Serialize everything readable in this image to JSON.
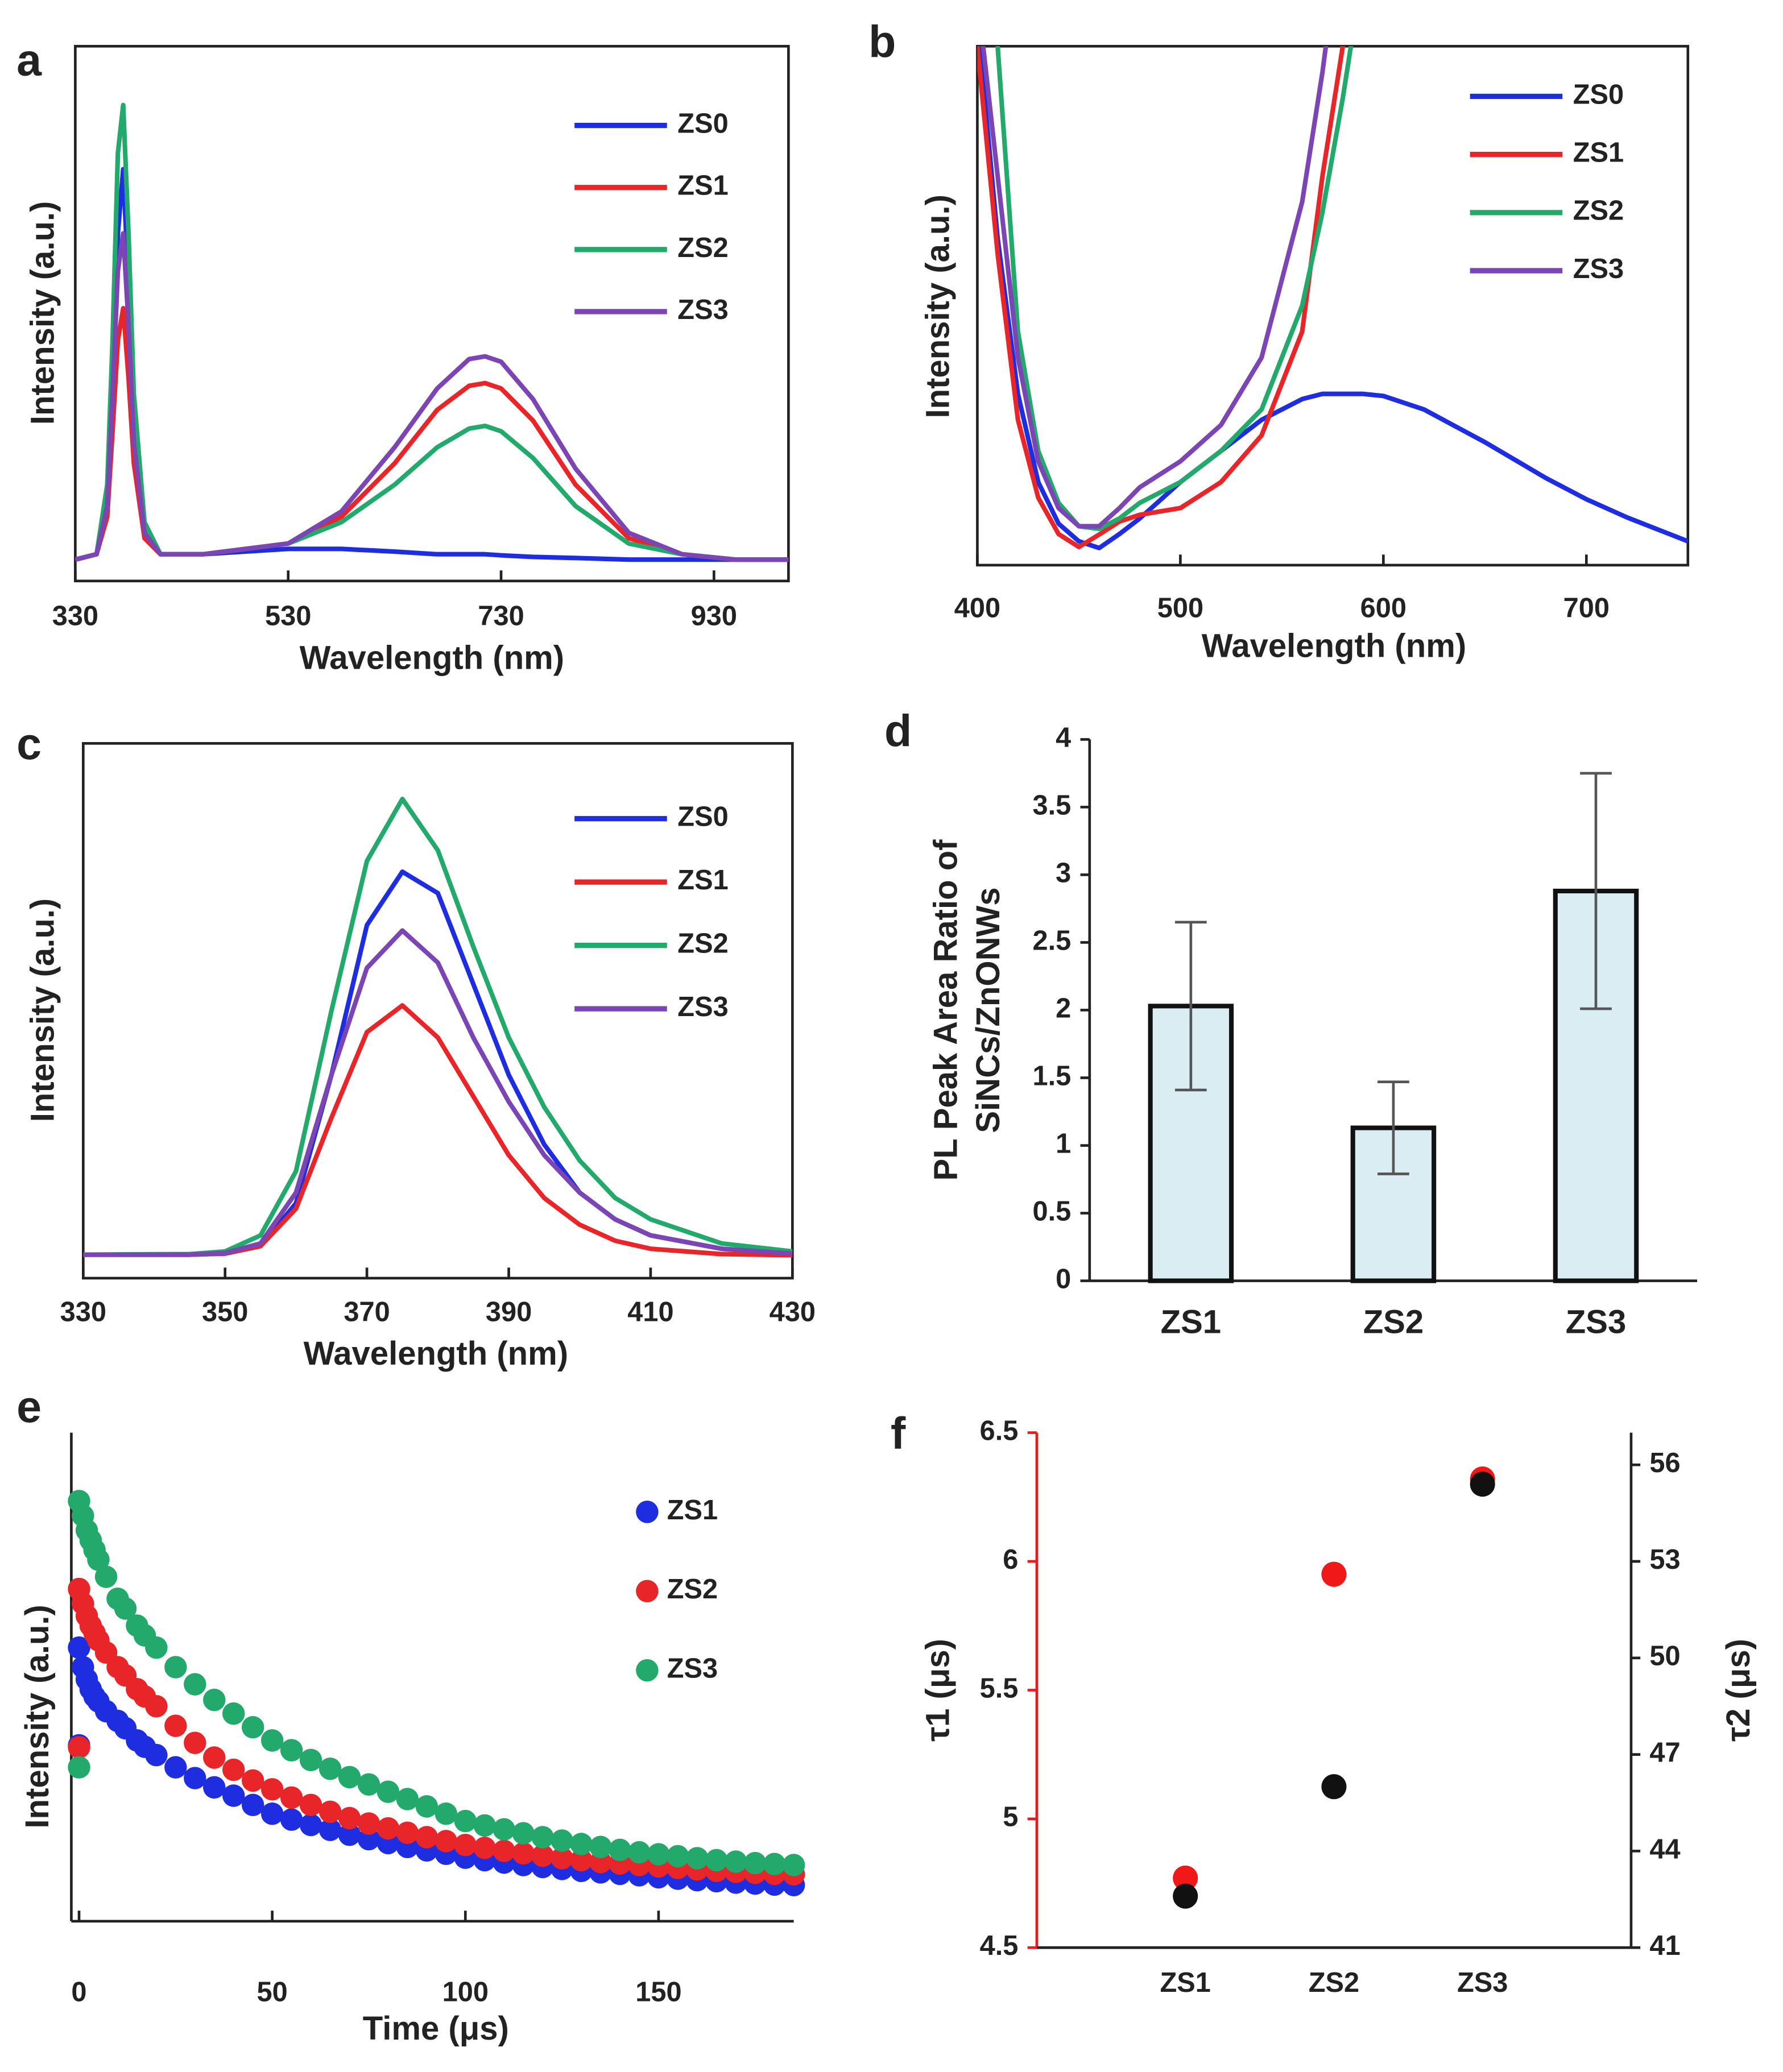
{
  "chart_data": [
    {
      "panel": "a",
      "type": "line",
      "xlabel": "Wavelength (nm)",
      "ylabel": "Intensity (a.u.)",
      "xlim": [
        330,
        1000
      ],
      "xticks": [
        330,
        530,
        730,
        930
      ],
      "ylim": [
        0,
        100
      ],
      "legend": true,
      "x": [
        330,
        350,
        360,
        365,
        370,
        375,
        380,
        385,
        395,
        410,
        450,
        530,
        580,
        630,
        670,
        700,
        715,
        730,
        760,
        800,
        850,
        900,
        950,
        1000
      ],
      "series": [
        {
          "name": "ZS0",
          "color": "#1f2de0",
          "values": [
            4,
            5,
            15,
            35,
            65,
            77,
            55,
            30,
            10,
            5,
            5,
            6,
            6,
            5.5,
            5,
            5,
            5,
            4.8,
            4.5,
            4.3,
            4,
            4,
            4,
            4
          ]
        },
        {
          "name": "ZS1",
          "color": "#e8262a",
          "values": [
            4,
            5,
            12,
            28,
            45,
            51,
            38,
            22,
            8,
            5,
            5,
            7,
            12,
            22,
            32,
            36.5,
            37,
            36,
            30,
            18,
            8,
            5,
            4,
            4
          ]
        },
        {
          "name": "ZS2",
          "color": "#22a96b",
          "values": [
            4,
            5,
            18,
            45,
            80,
            89,
            65,
            35,
            11,
            5,
            5,
            7,
            11,
            18,
            25,
            28.5,
            29,
            28,
            23,
            14,
            7,
            5,
            4,
            4
          ]
        },
        {
          "name": "ZS3",
          "color": "#7b45b3",
          "values": [
            4,
            5,
            14,
            35,
            58,
            65,
            48,
            26,
            9,
            5,
            5,
            7,
            13,
            25,
            36,
            41.5,
            42,
            41,
            34,
            21,
            9,
            5,
            4,
            4
          ]
        }
      ]
    },
    {
      "panel": "b",
      "type": "line",
      "xlabel": "Wavelength (nm)",
      "ylabel": "Intensity (a.u.)",
      "xlim": [
        400,
        750
      ],
      "xticks": [
        400,
        500,
        600,
        700
      ],
      "ylim": [
        0,
        100
      ],
      "legend": true,
      "x": [
        400,
        410,
        420,
        430,
        440,
        450,
        460,
        470,
        480,
        500,
        520,
        540,
        560,
        570,
        580,
        590,
        600,
        620,
        650,
        680,
        700,
        720,
        750
      ],
      "series": [
        {
          "name": "ZS0",
          "color": "#1f2de0",
          "values": [
            105,
            63,
            33,
            16,
            8,
            4.6,
            3.3,
            6,
            9,
            16,
            22,
            28,
            32,
            33,
            33,
            33,
            32.6,
            30,
            23.7,
            16.8,
            12.7,
            9.2,
            4.6
          ]
        },
        {
          "name": "ZS1",
          "color": "#e8262a",
          "values": [
            100,
            60,
            28,
            13,
            6,
            3.5,
            5.9,
            8.4,
            9.7,
            11,
            16,
            25,
            45,
            75,
            100,
            130,
            null,
            null,
            null,
            null,
            null,
            null,
            null
          ]
        },
        {
          "name": "ZS2",
          "color": "#22a96b",
          "values": [
            120,
            100,
            45,
            22,
            12,
            7.5,
            7,
            9,
            12,
            16,
            22,
            30,
            50,
            68,
            90,
            115,
            null,
            null,
            null,
            null,
            null,
            null,
            null
          ]
        },
        {
          "name": "ZS3",
          "color": "#7b45b3",
          "values": [
            110,
            75,
            40,
            20,
            11,
            7.5,
            7.5,
            11,
            15,
            20,
            27,
            40,
            70,
            95,
            125,
            null,
            null,
            null,
            null,
            null,
            null,
            null,
            null
          ]
        }
      ]
    },
    {
      "panel": "c",
      "type": "line",
      "xlabel": "Wavelength (nm)",
      "ylabel": "Intensity (a.u.)",
      "xlim": [
        330,
        430
      ],
      "xticks": [
        330,
        350,
        370,
        390,
        410,
        430
      ],
      "ylim": [
        0,
        100
      ],
      "legend": true,
      "x": [
        330,
        345,
        350,
        355,
        360,
        365,
        370,
        375,
        380,
        385,
        390,
        395,
        400,
        405,
        410,
        420,
        430
      ],
      "series": [
        {
          "name": "ZS0",
          "color": "#1f2de0",
          "values": [
            4.4,
            4.4,
            4.6,
            6,
            14,
            38,
            66,
            76,
            72,
            55,
            38,
            25,
            16,
            11,
            8,
            5.5,
            4.6
          ]
        },
        {
          "name": "ZS1",
          "color": "#e8262a",
          "values": [
            4.4,
            4.4,
            4.6,
            6,
            13,
            30,
            46,
            51,
            45,
            34,
            23,
            15,
            10,
            7,
            5.5,
            4.5,
            4.3
          ]
        },
        {
          "name": "ZS2",
          "color": "#22a96b",
          "values": [
            4.4,
            4.5,
            5,
            8,
            20,
            50,
            78,
            89.6,
            80,
            62,
            45,
            32,
            22,
            15,
            11,
            6.5,
            5
          ]
        },
        {
          "name": "ZS3",
          "color": "#7b45b3",
          "values": [
            4.4,
            4.4,
            4.7,
            6.5,
            16,
            38,
            58,
            65,
            59,
            45,
            33,
            23,
            16,
            11,
            8,
            5.5,
            4.6
          ]
        }
      ]
    },
    {
      "panel": "d",
      "type": "bar",
      "ylabel": [
        "PL Peak Area  Ratio of",
        "SiNCs/ZnONWs"
      ],
      "categories": [
        "ZS1",
        "ZS2",
        "ZS3"
      ],
      "values": [
        2.03,
        1.13,
        2.88
      ],
      "errors": [
        0.62,
        0.34,
        0.87
      ],
      "color": "#daedf2",
      "ylim": [
        0,
        4
      ],
      "yticks": [
        0,
        0.5,
        1,
        1.5,
        2,
        2.5,
        3,
        3.5,
        4
      ]
    },
    {
      "panel": "e",
      "type": "scatter",
      "xlabel": "Time  (μs)",
      "ylabel": "Intensity (a.u.)",
      "xlim": [
        -2,
        185
      ],
      "xticks": [
        0,
        50,
        100,
        150
      ],
      "ylim": [
        0,
        100
      ],
      "legend": true,
      "x": [
        0,
        0,
        1,
        2,
        3,
        4,
        5,
        7,
        10,
        12,
        15,
        17,
        20,
        25,
        30,
        35,
        40,
        45,
        50,
        55,
        60,
        65,
        70,
        75,
        80,
        85,
        90,
        95,
        100,
        105,
        110,
        115,
        120,
        125,
        130,
        135,
        140,
        145,
        150,
        155,
        160,
        165,
        170,
        175,
        180,
        185
      ],
      "series": [
        {
          "name": "ZS1",
          "color": "#1f2de0",
          "values": [
            36,
            56,
            52,
            49.5,
            47.5,
            46,
            45,
            43,
            41,
            39.5,
            37,
            35.7,
            34,
            31.5,
            29.3,
            27.4,
            25.7,
            23.8,
            22,
            20.8,
            19.7,
            18.7,
            17.7,
            16.8,
            16,
            15.2,
            14.5,
            13.8,
            13,
            12.5,
            12,
            11.5,
            11.1,
            10.7,
            10.3,
            10,
            9.7,
            9.4,
            9,
            8.7,
            8.4,
            8.2,
            7.9,
            7.7,
            7.5,
            7.4
          ]
        },
        {
          "name": "ZS2",
          "color": "#e8262a",
          "values": [
            35.6,
            68,
            65,
            62.5,
            60.5,
            59,
            57.5,
            55,
            52,
            50.3,
            47.5,
            46,
            44,
            40,
            36.5,
            33.5,
            31,
            28.8,
            27,
            25.3,
            23.8,
            22.4,
            21.1,
            20,
            19,
            18.1,
            17.2,
            16.4,
            15.6,
            15,
            14.4,
            13.9,
            13.4,
            12.9,
            12.5,
            12.1,
            11.8,
            11.5,
            11.2,
            10.9,
            10.6,
            10.3,
            10.1,
            9.9,
            9.7,
            9.6
          ]
        },
        {
          "name": "ZS3",
          "color": "#22a96b",
          "values": [
            31.5,
            86,
            83,
            80,
            78,
            76,
            74,
            70.5,
            66,
            64,
            60.5,
            58.5,
            56,
            52,
            48.5,
            45.3,
            42.5,
            39.7,
            37,
            35,
            33,
            31.2,
            29.5,
            28,
            26.5,
            25,
            23.5,
            22,
            20.5,
            19.6,
            18.8,
            18,
            17.2,
            16.5,
            15.8,
            15.2,
            14.6,
            14.1,
            13.7,
            13.3,
            12.9,
            12.5,
            12.2,
            11.9,
            11.7,
            11.5
          ]
        }
      ]
    },
    {
      "panel": "f",
      "type": "scatter",
      "ylabel": "τ1 (μs)",
      "y2label": "τ2 (μs)",
      "categories": [
        "ZS1",
        "ZS2",
        "ZS3"
      ],
      "ylim": [
        4.5,
        6.5
      ],
      "yticks": [
        4.5,
        5,
        5.5,
        6,
        6.5
      ],
      "y2lim": [
        41,
        57
      ],
      "y2ticks": [
        41,
        44,
        47,
        50,
        53,
        56
      ],
      "series": [
        {
          "color": "#f01818",
          "values": [
            4.77,
            5.95,
            6.32
          ]
        },
        {
          "color": "#111111",
          "axis": "y2",
          "values": [
            42.6,
            46.0,
            55.4
          ]
        }
      ]
    }
  ]
}
